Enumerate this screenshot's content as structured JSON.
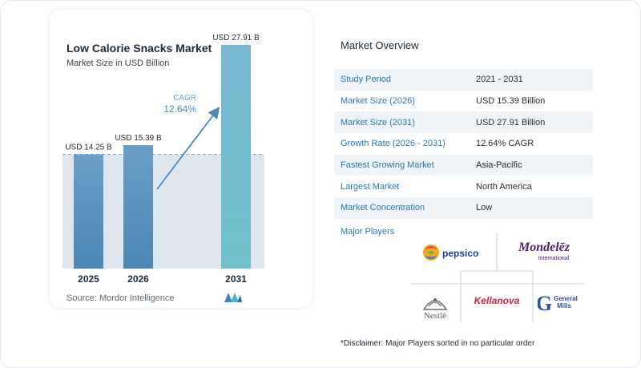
{
  "chart_data": {
    "type": "bar",
    "title": "Low Calorie Snacks Market",
    "subtitle": "Market Size in USD Billion",
    "categories": [
      "2025",
      "2026",
      "2031"
    ],
    "values": [
      14.25,
      15.39,
      27.91
    ],
    "value_labels": [
      "USD 14.25 B",
      "USD 15.39 B",
      "USD 27.91 B"
    ],
    "cagr_label": "CAGR",
    "cagr_value": "12.64%",
    "ylim": [
      0,
      30
    ],
    "grid": false,
    "colors": {
      "bar_top": "#6a9ec6",
      "bar_bottom": "#4d86b5",
      "last_bar_top": "#79b8d2",
      "last_bar_bottom": "#6fc1cc",
      "band": "#dfe6ee",
      "arrow": "#4b88bd"
    }
  },
  "source": "Source: Mordor Intelligence",
  "overview": {
    "title": "Market Overview",
    "rows": [
      {
        "key": "Study Period",
        "value": "2021 - 2031"
      },
      {
        "key": "Market Size (2026)",
        "value": "USD 15.39 Billion"
      },
      {
        "key": "Market Size (2031)",
        "value": "USD 27.91 Billion"
      },
      {
        "key": "Growth Rate (2026 - 2031)",
        "value": "12.64% CAGR"
      },
      {
        "key": "Fastest Growing Market",
        "value": "Asia-Pacific"
      },
      {
        "key": "Largest Market",
        "value": "North America"
      },
      {
        "key": "Market Concentration",
        "value": "Low"
      }
    ]
  },
  "major_players": {
    "title": "Major Players",
    "logos": [
      "pepsico",
      "Mondelēz",
      "International",
      "Nestlē",
      "Kellanova",
      "General",
      "Mills"
    ]
  },
  "disclaimer": "*Disclaimer: Major Players sorted in no particular order"
}
